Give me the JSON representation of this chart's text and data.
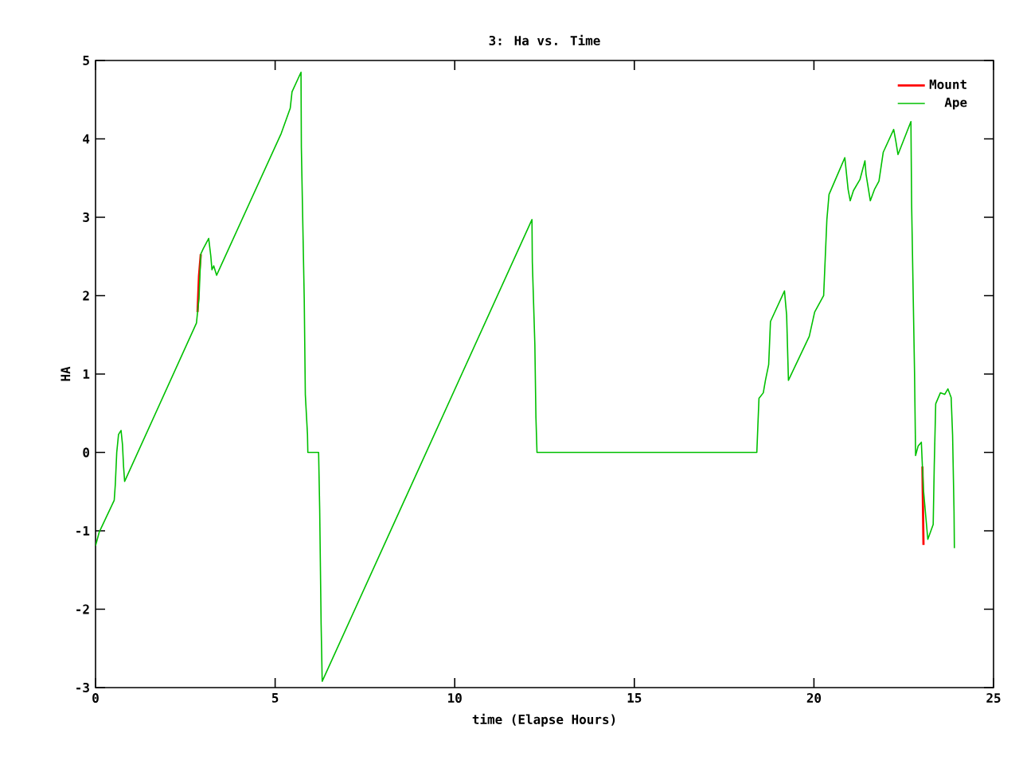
{
  "chart_data": {
    "type": "line",
    "title": "3: Ha vs. Time",
    "xlabel": "time (Elapse Hours)",
    "ylabel": "HA",
    "x": [
      0,
      0.1,
      0.52,
      0.55,
      0.59,
      0.64,
      0.71,
      0.75,
      0.78,
      0.81,
      2.81,
      2.84,
      2.88,
      2.93,
      3.0,
      3.15,
      3.21,
      3.24,
      3.29,
      3.37,
      5.17,
      5.42,
      5.47,
      5.72,
      5.73,
      5.81,
      5.84,
      5.9,
      5.91,
      6.21,
      6.24,
      6.28,
      6.31,
      12.15,
      12.16,
      12.23,
      12.26,
      12.29,
      18.41,
      18.44,
      18.47,
      18.59,
      18.65,
      18.74,
      18.79,
      19.18,
      19.24,
      19.29,
      19.87,
      20.02,
      20.27,
      20.36,
      20.42,
      20.86,
      20.95,
      21.01,
      21.1,
      21.28,
      21.42,
      21.45,
      21.57,
      21.69,
      21.81,
      21.93,
      22.22,
      22.28,
      22.34,
      22.7,
      22.72,
      22.8,
      22.83,
      22.9,
      22.99,
      23.02,
      23.05,
      23.12,
      23.17,
      23.32,
      23.35,
      23.39,
      23.52,
      23.64,
      23.73,
      23.82,
      23.86,
      23.9,
      23.91
    ],
    "series": [
      {
        "name": "Mount",
        "color": "#ff0000",
        "values": [
          null,
          null,
          null,
          null,
          null,
          null,
          null,
          null,
          null,
          null,
          null,
          1.79,
          2.25,
          2.53,
          null,
          null,
          null,
          null,
          null,
          null,
          null,
          null,
          null,
          null,
          null,
          null,
          null,
          null,
          null,
          null,
          null,
          null,
          null,
          null,
          null,
          null,
          null,
          null,
          null,
          null,
          null,
          null,
          null,
          null,
          null,
          null,
          null,
          null,
          null,
          null,
          null,
          null,
          null,
          null,
          null,
          null,
          null,
          null,
          null,
          null,
          null,
          null,
          null,
          null,
          null,
          null,
          null,
          null,
          null,
          null,
          null,
          null,
          null,
          -0.18,
          -1.18,
          null,
          null,
          null,
          null,
          null,
          null,
          null,
          null,
          null,
          null,
          null,
          null
        ]
      },
      {
        "name": "Ape",
        "color": "#00c000",
        "values": [
          -1.19,
          -1.02,
          -0.61,
          -0.41,
          0.0,
          0.23,
          0.28,
          0.1,
          -0.18,
          -0.37,
          1.65,
          1.79,
          1.96,
          2.53,
          2.6,
          2.73,
          2.5,
          2.33,
          2.38,
          2.26,
          4.07,
          4.39,
          4.6,
          4.85,
          3.89,
          1.96,
          0.74,
          0.23,
          0.0,
          0.0,
          -0.72,
          -2.19,
          -2.92,
          2.97,
          2.43,
          1.38,
          0.45,
          0.0,
          0.0,
          0.35,
          0.69,
          0.76,
          0.92,
          1.12,
          1.67,
          2.06,
          1.75,
          0.92,
          1.48,
          1.79,
          2.0,
          2.97,
          3.29,
          3.76,
          3.36,
          3.21,
          3.34,
          3.48,
          3.72,
          3.55,
          3.21,
          3.36,
          3.46,
          3.83,
          4.12,
          3.97,
          3.8,
          4.22,
          3.15,
          1.03,
          -0.04,
          0.08,
          0.13,
          -0.18,
          -0.48,
          -0.85,
          -1.11,
          -0.92,
          -0.16,
          0.62,
          0.76,
          0.74,
          0.81,
          0.7,
          0.22,
          -0.75,
          -1.22
        ]
      }
    ],
    "xlim": [
      0,
      25
    ],
    "ylim": [
      -3,
      5
    ],
    "xticks": [
      0,
      5,
      10,
      15,
      20,
      25
    ],
    "yticks": [
      -3,
      -2,
      -1,
      0,
      1,
      2,
      3,
      4,
      5
    ],
    "legend": "top right",
    "grid": false,
    "marker": "none",
    "line_style": "solid"
  }
}
